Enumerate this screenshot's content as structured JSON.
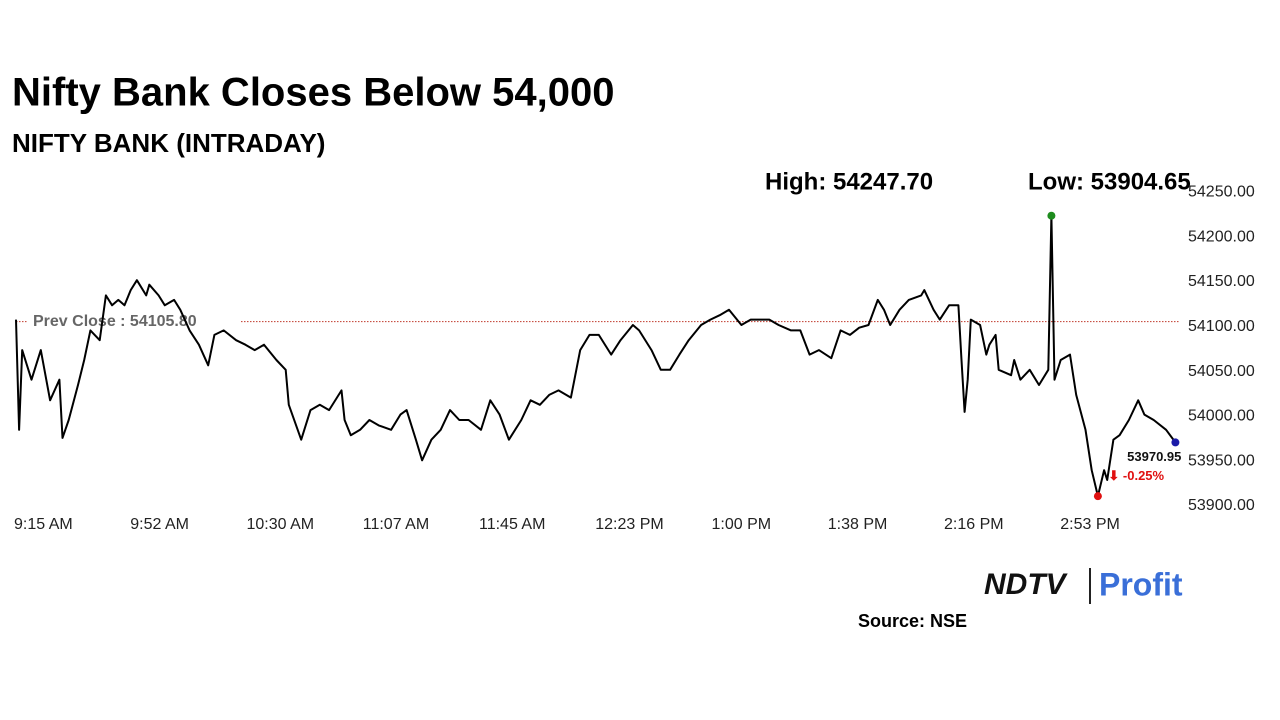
{
  "chart_data": {
    "type": "line",
    "title": "Nifty Bank Closes Below 54,000",
    "subtitle": "NIFTY BANK (INTRADAY)",
    "annotations": {
      "high": "High: 54247.70",
      "low": "Low: 53904.65",
      "change": "⬇ -0.25%"
    },
    "reference_line": {
      "label": "Prev Close : 54105.80",
      "value": 54105.8,
      "color": "#c0392b"
    },
    "series": [
      {
        "name": "NIFTY BANK",
        "color": "#000000",
        "x": [
          555,
          556,
          557,
          560,
          563,
          566,
          569,
          570,
          572,
          575,
          577,
          579,
          582,
          584,
          586,
          588,
          590,
          592,
          594,
          597,
          598,
          601,
          603,
          606,
          608,
          611,
          614,
          617,
          619,
          622,
          626,
          629,
          632,
          635,
          639,
          642,
          643,
          647,
          650,
          653,
          656,
          660,
          661,
          663,
          666,
          669,
          672,
          676,
          679,
          681,
          684,
          686,
          689,
          692,
          695,
          698,
          701,
          705,
          708,
          711,
          714,
          718,
          721,
          724,
          727,
          730,
          734,
          737,
          740,
          743,
          747,
          750,
          754,
          756,
          760,
          763,
          766,
          769,
          772,
          776,
          779,
          782,
          785,
          789,
          792,
          795,
          798,
          801,
          805,
          808,
          811,
          814,
          818,
          821,
          824,
          827,
          830,
          833,
          835,
          837,
          840,
          843,
          847,
          848,
          851,
          853,
          856,
          859,
          860,
          861,
          862,
          863,
          866,
          868,
          869,
          871,
          872,
          876,
          877,
          879,
          882,
          885,
          888,
          889,
          890,
          892,
          895,
          897,
          900,
          902,
          904,
          906,
          907,
          909,
          911,
          914,
          917,
          919,
          922,
          926,
          929
        ],
        "values": [
          54108,
          53985,
          54074,
          54041,
          54074,
          54018,
          54041,
          53976,
          53996,
          54035,
          54063,
          54096,
          54085,
          54135,
          54124,
          54130,
          54124,
          54141,
          54152,
          54135,
          54147,
          54135,
          54124,
          54130,
          54119,
          54096,
          54080,
          54057,
          54091,
          54096,
          54085,
          54080,
          54074,
          54080,
          54063,
          54052,
          54013,
          53974,
          54007,
          54013,
          54007,
          54029,
          53996,
          53979,
          53985,
          53996,
          53990,
          53985,
          54002,
          54007,
          53974,
          53951,
          53974,
          53985,
          54007,
          53996,
          53996,
          53985,
          54018,
          54002,
          53974,
          53996,
          54018,
          54013,
          54024,
          54029,
          54021,
          54074,
          54091,
          54091,
          54069,
          54085,
          54102,
          54096,
          54074,
          54052,
          54052,
          54069,
          54085,
          54102,
          54108,
          54113,
          54119,
          54102,
          54108,
          54108,
          54108,
          54102,
          54096,
          54096,
          54069,
          54074,
          54065,
          54096,
          54091,
          54099,
          54102,
          54130,
          54119,
          54102,
          54119,
          54130,
          54135,
          54141,
          54119,
          54108,
          54124,
          54124,
          54063,
          54005,
          54041,
          54108,
          54102,
          54069,
          54080,
          54091,
          54052,
          54046,
          54063,
          54041,
          54052,
          54035,
          54052,
          54224,
          54041,
          54063,
          54069,
          54024,
          53985,
          53940,
          53911,
          53940,
          53929,
          53974,
          53979,
          53996,
          54018,
          54002,
          53996,
          53985,
          53970.95
        ]
      }
    ],
    "marker_colors": {
      "high": "#1e8c1e",
      "low": "#e01010",
      "last": "#1a1aa8"
    },
    "change_color": "#e01010",
    "xlim": [
      555,
      930
    ],
    "xticks": [
      {
        "value": 555,
        "label": "9:15 AM"
      },
      {
        "value": 592.5,
        "label": "9:52 AM"
      },
      {
        "value": 630,
        "label": "10:30 AM"
      },
      {
        "value": 667.5,
        "label": "11:07 AM"
      },
      {
        "value": 705,
        "label": "11:45 AM"
      },
      {
        "value": 742.5,
        "label": "12:23 PM"
      },
      {
        "value": 780,
        "label": "1:00 PM"
      },
      {
        "value": 817.5,
        "label": "1:38 PM"
      },
      {
        "value": 855,
        "label": "2:16 PM"
      },
      {
        "value": 892.5,
        "label": "2:53 PM"
      }
    ],
    "ylim": [
      53900,
      54250
    ],
    "yticks": [
      {
        "value": 53900,
        "label": "53900.00"
      },
      {
        "value": 53950,
        "label": "53950.00"
      },
      {
        "value": 54000,
        "label": "54000.00"
      },
      {
        "value": 54050,
        "label": "54050.00"
      },
      {
        "value": 54100,
        "label": "54100.00"
      },
      {
        "value": 54150,
        "label": "54150.00"
      },
      {
        "value": 54200,
        "label": "54200.00"
      },
      {
        "value": 54250,
        "label": "54250.00"
      }
    ],
    "grid": false,
    "source": "Source: NSE",
    "logo": {
      "left": "NDTV",
      "right": "Profit"
    }
  }
}
